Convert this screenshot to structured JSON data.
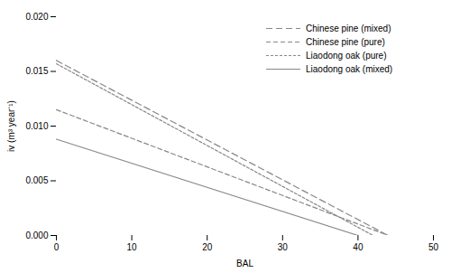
{
  "chart_data": {
    "type": "line",
    "xlabel": "BAL",
    "ylabel": "iv (m³ year⁻¹)",
    "series": [
      {
        "name": "Chinese pine (mixed)",
        "color": "#888888",
        "line_style": "long-dash",
        "x": [
          0,
          44
        ],
        "values": [
          0.016,
          0
        ]
      },
      {
        "name": "Chinese pine (pure)",
        "color": "#888888",
        "line_style": "dash",
        "x": [
          0,
          44
        ],
        "values": [
          0.0115,
          0
        ]
      },
      {
        "name": "Liaodong oak (pure)",
        "color": "#888888",
        "line_style": "short-dash",
        "x": [
          0,
          42
        ],
        "values": [
          0.0157,
          0
        ]
      },
      {
        "name": "Liaodong oak (mixed)",
        "color": "#888888",
        "line_style": "solid",
        "x": [
          0,
          40
        ],
        "values": [
          0.0088,
          0
        ]
      }
    ],
    "xlim": [
      0,
      50
    ],
    "ylim": [
      0,
      0.02
    ],
    "xticks": [
      0,
      10,
      20,
      30,
      40,
      50
    ],
    "yticks": [
      {
        "value": 0,
        "label": "0.000"
      },
      {
        "value": 0.005,
        "label": "0.005"
      },
      {
        "value": 0.01,
        "label": "0.010"
      },
      {
        "value": 0.015,
        "label": "0.015"
      },
      {
        "value": 0.02,
        "label": "0.020"
      }
    ],
    "legend": "upper right"
  }
}
